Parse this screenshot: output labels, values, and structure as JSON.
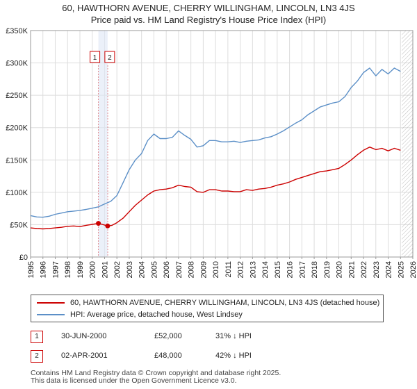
{
  "title_line1": "60, HAWTHORN AVENUE, CHERRY WILLINGHAM, LINCOLN, LN3 4JS",
  "title_line2": "Price paid vs. HM Land Registry's House Price Index (HPI)",
  "chart_data": {
    "type": "line",
    "xlim": [
      1995,
      2026
    ],
    "ylim": [
      0,
      350000
    ],
    "y_ticks": [
      0,
      50000,
      100000,
      150000,
      200000,
      250000,
      300000,
      350000
    ],
    "y_tick_labels": [
      "£0",
      "£50K",
      "£100K",
      "£150K",
      "£200K",
      "£250K",
      "£300K",
      "£350K"
    ],
    "x_ticks": [
      1995,
      1996,
      1997,
      1998,
      1999,
      2000,
      2001,
      2002,
      2003,
      2004,
      2005,
      2006,
      2007,
      2008,
      2009,
      2010,
      2011,
      2012,
      2013,
      2014,
      2015,
      2016,
      2017,
      2018,
      2019,
      2020,
      2021,
      2022,
      2023,
      2024,
      2025,
      2026
    ],
    "x_tick_labels": [
      "1995",
      "1996",
      "1997",
      "1998",
      "1999",
      "2000",
      "2001",
      "2002",
      "2003",
      "2004",
      "2005",
      "2006",
      "2007",
      "2008",
      "2009",
      "2010",
      "2011",
      "2012",
      "2013",
      "2014",
      "2015",
      "2016",
      "2017",
      "2018",
      "2019",
      "2020",
      "2021",
      "2022",
      "2023",
      "2024",
      "2025",
      "2026"
    ],
    "grid": true,
    "future_hatch_from": 2025.1,
    "series": [
      {
        "name": "60, HAWTHORN AVENUE, CHERRY WILLINGHAM, LINCOLN, LN3 4JS (detached house)",
        "color": "#cc0000",
        "x": [
          1995.0,
          1995.5,
          1996.0,
          1996.5,
          1997.0,
          1997.5,
          1998.0,
          1998.5,
          1999.0,
          1999.5,
          2000.0,
          2000.5,
          2000.9,
          2001.25,
          2001.6,
          2002.0,
          2002.5,
          2003.0,
          2003.5,
          2004.0,
          2004.5,
          2005.0,
          2005.5,
          2006.0,
          2006.5,
          2007.0,
          2007.5,
          2008.0,
          2008.5,
          2009.0,
          2009.5,
          2010.0,
          2010.5,
          2011.0,
          2011.5,
          2012.0,
          2012.5,
          2013.0,
          2013.5,
          2014.0,
          2014.5,
          2015.0,
          2015.5,
          2016.0,
          2016.5,
          2017.0,
          2017.5,
          2018.0,
          2018.5,
          2019.0,
          2019.5,
          2020.0,
          2020.5,
          2021.0,
          2021.5,
          2022.0,
          2022.5,
          2023.0,
          2023.5,
          2024.0,
          2024.5,
          2025.0
        ],
        "y": [
          45000,
          44000,
          43500,
          44000,
          45000,
          46000,
          47500,
          48000,
          47000,
          49000,
          50500,
          52000,
          50000,
          48000,
          49000,
          53000,
          60000,
          70000,
          80000,
          88000,
          96000,
          102000,
          104000,
          105000,
          107000,
          111000,
          109000,
          108000,
          101000,
          100000,
          104000,
          104000,
          102000,
          102000,
          101000,
          101000,
          104000,
          103000,
          105000,
          106000,
          108000,
          111000,
          113000,
          116000,
          120000,
          123000,
          126000,
          129000,
          132000,
          133000,
          135000,
          137000,
          143000,
          150000,
          158000,
          165000,
          170000,
          166000,
          168000,
          164000,
          168000,
          165000
        ]
      },
      {
        "name": "HPI: Average price, detached house, West Lindsey",
        "color": "#5b8fc7",
        "x": [
          1995.0,
          1995.5,
          1996.0,
          1996.5,
          1997.0,
          1997.5,
          1998.0,
          1998.5,
          1999.0,
          1999.5,
          2000.0,
          2000.5,
          2001.0,
          2001.5,
          2002.0,
          2002.5,
          2003.0,
          2003.5,
          2004.0,
          2004.5,
          2005.0,
          2005.5,
          2006.0,
          2006.5,
          2007.0,
          2007.5,
          2008.0,
          2008.5,
          2009.0,
          2009.5,
          2010.0,
          2010.5,
          2011.0,
          2011.5,
          2012.0,
          2012.5,
          2013.0,
          2013.5,
          2014.0,
          2014.5,
          2015.0,
          2015.5,
          2016.0,
          2016.5,
          2017.0,
          2017.5,
          2018.0,
          2018.5,
          2019.0,
          2019.5,
          2020.0,
          2020.5,
          2021.0,
          2021.5,
          2022.0,
          2022.5,
          2023.0,
          2023.5,
          2024.0,
          2024.5,
          2025.0
        ],
        "y": [
          64000,
          62000,
          61500,
          63000,
          66000,
          68000,
          70000,
          71000,
          72000,
          73500,
          75500,
          77500,
          82000,
          86000,
          95000,
          115000,
          135000,
          150000,
          160000,
          180000,
          190000,
          183000,
          183000,
          185000,
          195000,
          188000,
          182000,
          170000,
          172000,
          180000,
          180000,
          178000,
          178000,
          179000,
          177000,
          179000,
          180000,
          181000,
          184000,
          186000,
          190000,
          195000,
          201000,
          207000,
          212000,
          220000,
          226000,
          232000,
          235000,
          238000,
          240000,
          248000,
          262000,
          272000,
          285000,
          292000,
          280000,
          290000,
          283000,
          292000,
          287000
        ]
      }
    ],
    "transactions": [
      {
        "marker": "1",
        "x": 2000.5,
        "y": 52000
      },
      {
        "marker": "2",
        "x": 2001.25,
        "y": 48000
      }
    ]
  },
  "legend": [
    {
      "label": "60, HAWTHORN AVENUE, CHERRY WILLINGHAM, LINCOLN, LN3 4JS (detached house)",
      "color": "#cc0000"
    },
    {
      "label": "HPI: Average price, detached house, West Lindsey",
      "color": "#5b8fc7"
    }
  ],
  "transactions_table": [
    {
      "marker": "1",
      "date": "30-JUN-2000",
      "price": "£52,000",
      "hpi": "31% ↓ HPI"
    },
    {
      "marker": "2",
      "date": "02-APR-2001",
      "price": "£48,000",
      "hpi": "42% ↓ HPI"
    }
  ],
  "footer_line1": "Contains HM Land Registry data © Crown copyright and database right 2025.",
  "footer_line2": "This data is licensed under the Open Government Licence v3.0."
}
